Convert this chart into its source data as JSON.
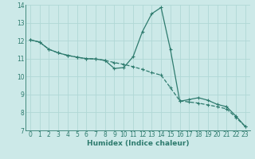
{
  "xlabel": "Humidex (Indice chaleur)",
  "xlim": [
    -0.5,
    23.5
  ],
  "ylim": [
    7,
    14
  ],
  "xticks": [
    0,
    1,
    2,
    3,
    4,
    5,
    6,
    7,
    8,
    9,
    10,
    11,
    12,
    13,
    14,
    15,
    16,
    17,
    18,
    19,
    20,
    21,
    22,
    23
  ],
  "yticks": [
    7,
    8,
    9,
    10,
    11,
    12,
    13,
    14
  ],
  "bg_color": "#cce9e8",
  "grid_color": "#b0d8d6",
  "line_color": "#2e7b6e",
  "series1_x": [
    0,
    1,
    2,
    3,
    4,
    5,
    6,
    7,
    8,
    9,
    10,
    11,
    12,
    13,
    14,
    15,
    16,
    17,
    18,
    19,
    20,
    21,
    22,
    23
  ],
  "series1_y": [
    12.05,
    11.92,
    11.52,
    11.32,
    11.18,
    11.08,
    11.0,
    10.98,
    10.9,
    10.45,
    10.5,
    11.1,
    12.5,
    13.5,
    13.85,
    11.5,
    8.62,
    8.72,
    8.82,
    8.68,
    8.45,
    8.32,
    7.8,
    7.22
  ],
  "series2_x": [
    0,
    1,
    2,
    3,
    4,
    5,
    6,
    7,
    8,
    9,
    10,
    11,
    12,
    13,
    14,
    15,
    16,
    17,
    18,
    19,
    20,
    21,
    22,
    23
  ],
  "series2_y": [
    12.05,
    11.92,
    11.52,
    11.32,
    11.18,
    11.08,
    11.0,
    10.98,
    10.9,
    10.78,
    10.68,
    10.55,
    10.4,
    10.22,
    10.08,
    9.38,
    8.65,
    8.58,
    8.52,
    8.42,
    8.32,
    8.2,
    7.72,
    7.22
  ]
}
